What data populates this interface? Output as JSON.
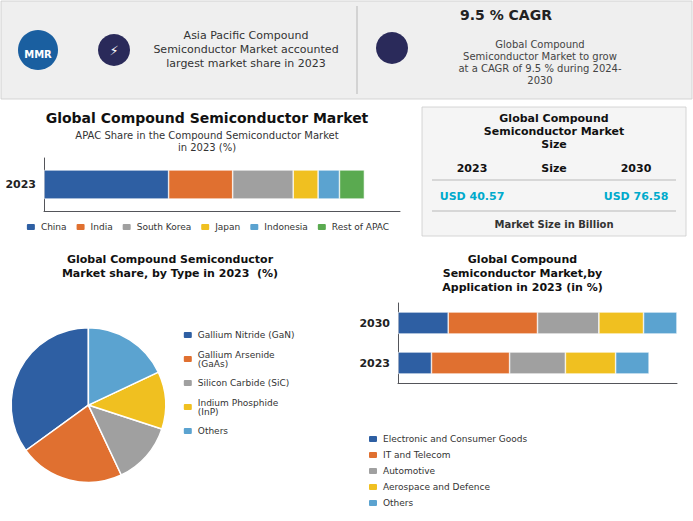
{
  "chart_data": [
    {
      "type": "bar",
      "title": "Global Compound Semiconductor Market",
      "subtitle": "APAC Share in the Compound Semiconductor Market\nin 2023 (%)",
      "annotations": [
        "MMR",
        "⚡",
        "Asia Pacific Compound\nSemiconductor Market accounted\nlargest market share in 2023",
        "9.5 % CAGR",
        "Global Compound\nSemiconductor Market to grow\nat a CAGR of 9.5 % during 2024-\n2030",
        "Global Compound\nSemiconductor Market\nSize",
        "2023",
        "Size",
        "2030",
        "USD 40.57",
        "USD 76.58",
        "Market Size in Billion"
      ],
      "orientation": "horizontal",
      "stacked": true,
      "categories": [
        "2023"
      ],
      "series": [
        {
          "name": "China",
          "color": "#2e5fa3",
          "values": [
            35
          ]
        },
        {
          "name": "India",
          "color": "#e07030",
          "values": [
            18
          ]
        },
        {
          "name": "South Korea",
          "color": "#a0a0a0",
          "values": [
            17
          ]
        },
        {
          "name": "Japan",
          "color": "#f0c020",
          "values": [
            7
          ]
        },
        {
          "name": "Indonesia",
          "color": "#5ba3d0",
          "values": [
            6
          ]
        },
        {
          "name": "Rest of APAC",
          "color": "#5aaa50",
          "values": [
            7
          ]
        }
      ],
      "xlim": [
        0,
        100
      ],
      "tick_labels": "y",
      "grid": false,
      "legend": "bottom"
    },
    {
      "type": "pie",
      "title": "Global Compound Semiconductor\nMarket share, by Type in 2023  (%)",
      "categories": [
        "Gallium Nitride (GaN)",
        "Gallium Arsenide\n(GaAs)",
        "Silicon Carbide (SiC)",
        "Indium Phosphide\n(InP)",
        "Others"
      ],
      "values": [
        35,
        22,
        13,
        12,
        18
      ],
      "colors": [
        "#2e5fa3",
        "#e07030",
        "#a0a0a0",
        "#f0c020",
        "#5ba3d0"
      ],
      "legend": "right"
    },
    {
      "type": "bar",
      "title": "Global Compound\nSemiconductor Market,by\nApplication in 2023 (in %)",
      "orientation": "horizontal",
      "stacked": true,
      "categories": [
        "2030",
        "2023"
      ],
      "series": [
        {
          "name": "Electronic and Consumer Goods",
          "color": "#2e5fa3",
          "values": [
            18,
            12
          ]
        },
        {
          "name": "IT and Telecom",
          "color": "#e07030",
          "values": [
            32,
            28
          ]
        },
        {
          "name": "Automotive",
          "color": "#a0a0a0",
          "values": [
            22,
            20
          ]
        },
        {
          "name": "Aerospace and Defence",
          "color": "#f0c020",
          "values": [
            16,
            18
          ]
        },
        {
          "name": "Others",
          "color": "#5ba3d0",
          "values": [
            12,
            12
          ]
        }
      ],
      "xlim": [
        0,
        100
      ],
      "tick_labels": "y",
      "grid": false,
      "legend": "lower left"
    }
  ]
}
